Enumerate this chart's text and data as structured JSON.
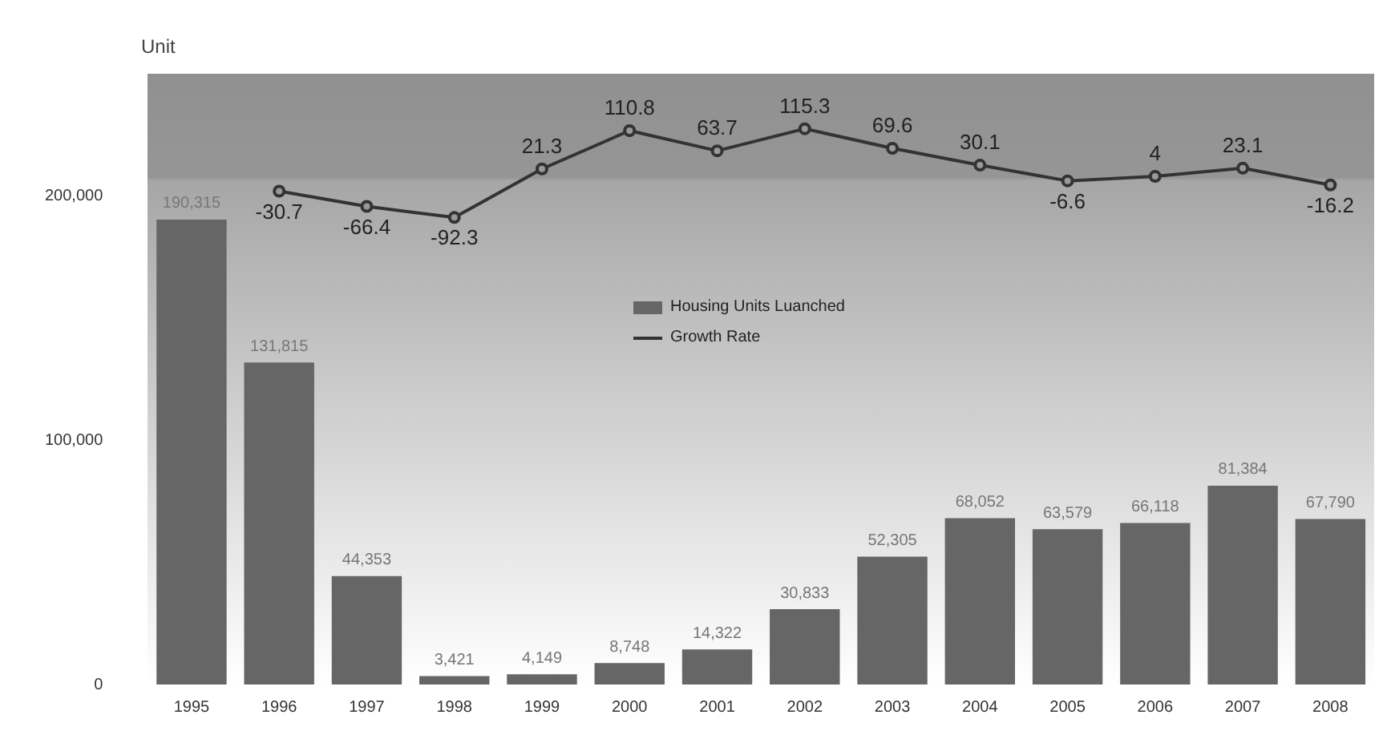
{
  "chart_data": {
    "type": "bar",
    "ylabel": "Unit",
    "categories": [
      "1995",
      "1996",
      "1997",
      "1998",
      "1999",
      "2000",
      "2001",
      "2002",
      "2003",
      "2004",
      "2005",
      "2006",
      "2007",
      "2008"
    ],
    "series": [
      {
        "name": "Housing Units Luanched",
        "color": "#666666",
        "values": [
          190315,
          131815,
          44353,
          3421,
          4149,
          8748,
          14322,
          30833,
          52305,
          68052,
          63579,
          66118,
          81384,
          67790
        ],
        "value_labels": [
          "190,315",
          "131,815",
          "44,353",
          "3,421",
          "4,149",
          "8,748",
          "14,322",
          "30,833",
          "52,305",
          "68,052",
          "63,579",
          "66,118",
          "81,384",
          "67,790"
        ]
      },
      {
        "name": "Growth Rate",
        "type": "line",
        "axis": "y2",
        "color": "#333333",
        "marker": "circle",
        "values": [
          null,
          -30.7,
          -66.4,
          -92.3,
          21.3,
          110.8,
          63.7,
          115.3,
          69.6,
          30.1,
          -6.6,
          4,
          23.1,
          -16.2
        ]
      }
    ],
    "ylim": [
      0,
      250000
    ],
    "yticks": [
      {
        "value": 0,
        "label": "0"
      },
      {
        "value": 100000,
        "label": "100,000"
      },
      {
        "value": 200000,
        "label": "200,000"
      }
    ],
    "y2lim": [
      -1185,
      244
    ],
    "grid": false,
    "legend": "top",
    "data_labels": true
  }
}
